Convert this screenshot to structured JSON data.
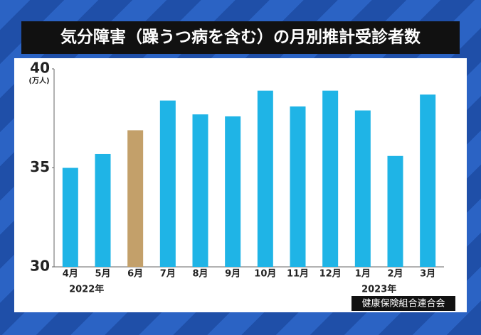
{
  "chart_data": {
    "type": "bar",
    "title": "気分障害（躁うつ病を含む）の月別推計受診者数",
    "y_axis_label": "(万人)",
    "categories": [
      "4月",
      "5月",
      "6月",
      "7月",
      "8月",
      "9月",
      "10月",
      "11月",
      "12月",
      "1月",
      "2月",
      "3月"
    ],
    "values": [
      35.0,
      35.7,
      36.9,
      38.4,
      37.7,
      37.6,
      38.9,
      38.1,
      38.9,
      37.9,
      35.6,
      38.7
    ],
    "colors": [
      "#1fb4e6",
      "#1fb4e6",
      "#c3a06a",
      "#1fb4e6",
      "#1fb4e6",
      "#1fb4e6",
      "#1fb4e6",
      "#1fb4e6",
      "#1fb4e6",
      "#1fb4e6",
      "#1fb4e6",
      "#1fb4e6"
    ],
    "year_labels": [
      "2022年",
      "2023年"
    ],
    "ylim": [
      30,
      40
    ],
    "yticks": [
      30,
      35,
      40
    ],
    "source": "健康保険組合連合会"
  }
}
